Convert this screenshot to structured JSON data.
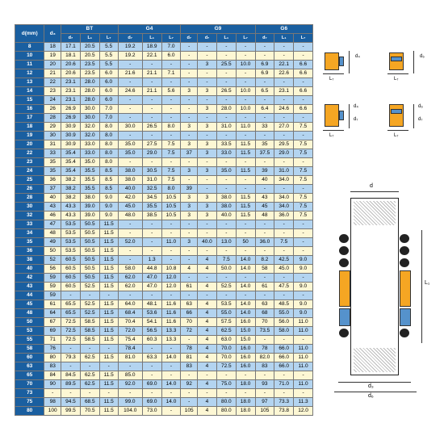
{
  "table": {
    "header": {
      "d": "d(mm)",
      "d3": "d₃",
      "groups": [
        "BT",
        "G4",
        "G9",
        "G6"
      ],
      "sub": [
        "d₇",
        "L₁",
        "L₇",
        "d₇",
        "L₁",
        "L₇",
        "d₇",
        "L₁",
        "L₇",
        "d₇",
        "L₁",
        "L₇"
      ]
    },
    "rows": [
      [
        "8",
        "18",
        "17.1",
        "20.5",
        "5.5",
        "19.2",
        "18.9",
        "7.0",
        "-",
        "-",
        "-",
        "-",
        "-",
        "-",
        "-",
        "-"
      ],
      [
        "10",
        "19",
        "18.1",
        "20.5",
        "5.5",
        "19.2",
        "22.1",
        "6.0",
        "-",
        "-",
        "-",
        "-",
        "-",
        "-",
        "-",
        "-"
      ],
      [
        "11",
        "20",
        "20.6",
        "23.5",
        "5.5",
        "-",
        "-",
        "-",
        "-",
        "3",
        "25.5",
        "10.0",
        "6.9",
        "22.1",
        "6.6",
        "-"
      ],
      [
        "12",
        "21",
        "20.6",
        "23.5",
        "6.0",
        "21.6",
        "21.1",
        "7.1",
        "-",
        "-",
        "-",
        "-",
        "6.9",
        "22.6",
        "6.6",
        "-"
      ],
      [
        "13",
        "22",
        "23.1",
        "28.0",
        "6.0",
        "-",
        "-",
        "-",
        "-",
        "-",
        "-",
        "-",
        "-",
        "-",
        "-",
        "-"
      ],
      [
        "14",
        "23",
        "23.1",
        "28.0",
        "6.0",
        "24.6",
        "21.1",
        "5.6",
        "3",
        "3",
        "26.5",
        "10.0",
        "6.5",
        "23.1",
        "6.6",
        "-"
      ],
      [
        "15",
        "24",
        "23.1",
        "28.0",
        "6.0",
        "-",
        "-",
        "-",
        "-",
        "-",
        "-",
        "-",
        "-",
        "-",
        "-",
        "-"
      ],
      [
        "16",
        "26",
        "26.9",
        "30.0",
        "7.0",
        "-",
        "-",
        "-",
        "-",
        "3",
        "28.0",
        "10.0",
        "6.4",
        "24.6",
        "6.6",
        "-"
      ],
      [
        "17",
        "28",
        "26.9",
        "30.0",
        "7.0",
        "-",
        "-",
        "-",
        "-",
        "-",
        "-",
        "-",
        "-",
        "-",
        "-",
        "-"
      ],
      [
        "18",
        "29",
        "30.9",
        "32.0",
        "8.0",
        "30.0",
        "26.5",
        "8.0",
        "3",
        "3",
        "31.0",
        "11.0",
        "33",
        "27.0",
        "7.5",
        "-"
      ],
      [
        "19",
        "30",
        "30.9",
        "32.0",
        "8.0",
        "-",
        "-",
        "-",
        "-",
        "-",
        "-",
        "-",
        "-",
        "-",
        "-",
        "-"
      ],
      [
        "20",
        "31",
        "30.9",
        "33.0",
        "8.0",
        "35.0",
        "27.5",
        "7.5",
        "3",
        "3",
        "33.5",
        "11.5",
        "35",
        "29.5",
        "7.5",
        "-"
      ],
      [
        "22",
        "33",
        "35.4",
        "33.0",
        "8.0",
        "35.0",
        "29.0",
        "7.5",
        "37",
        "3",
        "33.0",
        "11.5",
        "37.5",
        "29.0",
        "7.5",
        "-"
      ],
      [
        "23",
        "35",
        "35.4",
        "35.0",
        "8.0",
        "-",
        "-",
        "-",
        "-",
        "-",
        "-",
        "-",
        "-",
        "-",
        "-",
        "-"
      ],
      [
        "24",
        "35",
        "35.4",
        "35.5",
        "8.5",
        "38.0",
        "30.5",
        "7.5",
        "3",
        "3",
        "35.0",
        "11.5",
        "39",
        "31.0",
        "7.5",
        "-"
      ],
      [
        "25",
        "36",
        "38.2",
        "35.5",
        "8.5",
        "38.0",
        "31.0",
        "7.5",
        "-",
        "-",
        "-",
        "-",
        "40",
        "34.0",
        "7.5",
        "-"
      ],
      [
        "26",
        "37",
        "38.2",
        "35.5",
        "8.5",
        "40.0",
        "32.5",
        "8.0",
        "39",
        "-",
        "-",
        "-",
        "-",
        "-",
        "-",
        "-"
      ],
      [
        "28",
        "40",
        "38.2",
        "38.0",
        "9.0",
        "42.0",
        "34.5",
        "10.5",
        "3",
        "3",
        "38.0",
        "11.5",
        "43",
        "34.0",
        "7.5",
        "-"
      ],
      [
        "30",
        "43",
        "43.3",
        "39.0",
        "9.0",
        "45.0",
        "35.5",
        "10.5",
        "3",
        "3",
        "38.0",
        "11.5",
        "45",
        "34.0",
        "7.5",
        "-"
      ],
      [
        "32",
        "46",
        "43.3",
        "39.0",
        "9.0",
        "48.0",
        "38.5",
        "10.5",
        "3",
        "3",
        "40.0",
        "11.5",
        "48",
        "36.0",
        "7.5",
        "-"
      ],
      [
        "33",
        "47",
        "53.5",
        "50.5",
        "11.5",
        "-",
        "-",
        "-",
        "-",
        "-",
        "-",
        "-",
        "-",
        "-",
        "-",
        "-"
      ],
      [
        "34",
        "48",
        "53.5",
        "50.5",
        "11.5",
        "-",
        "-",
        "-",
        "-",
        "-",
        "-",
        "-",
        "-",
        "-",
        "-",
        "-"
      ],
      [
        "35",
        "49",
        "53.5",
        "50.5",
        "11.5",
        "52.0",
        "-",
        "11.0",
        "3",
        "40.0",
        "13.0",
        "50",
        "36.0",
        "7.5",
        "-",
        "-"
      ],
      [
        "36",
        "50",
        "53.5",
        "50.5",
        "11.5",
        "-",
        "-",
        "-",
        "-",
        "-",
        "-",
        "-",
        "-",
        "-",
        "-",
        "-"
      ],
      [
        "38",
        "52",
        "60.5",
        "50.5",
        "11.5",
        "-",
        "1.3",
        "-",
        "-",
        "4",
        "7.5",
        "14.0",
        "8.2",
        "42.5",
        "9.0",
        "-"
      ],
      [
        "40",
        "56",
        "60.5",
        "50.5",
        "11.5",
        "58.0",
        "44.8",
        "10.8",
        "4",
        "4",
        "50.0",
        "14.0",
        "58",
        "45.0",
        "9.0",
        "-"
      ],
      [
        "42",
        "59",
        "60.5",
        "50.5",
        "11.5",
        "62.0",
        "47.0",
        "12.0",
        "-",
        "-",
        "-",
        "-",
        "-",
        "-",
        "-",
        "-"
      ],
      [
        "43",
        "59",
        "60.5",
        "52.5",
        "11.5",
        "62.0",
        "47.0",
        "12.0",
        "61",
        "4",
        "52.5",
        "14.0",
        "61",
        "47.5",
        "9.0",
        "-"
      ],
      [
        "44",
        "59",
        "-",
        "-",
        "-",
        "-",
        "-",
        "-",
        "-",
        "-",
        "-",
        "-",
        "-",
        "-",
        "-",
        "-"
      ],
      [
        "45",
        "61",
        "65.5",
        "52.5",
        "11.5",
        "64.0",
        "48.1",
        "11.6",
        "63",
        "4",
        "53.5",
        "14.0",
        "63",
        "48.5",
        "9.0",
        "-"
      ],
      [
        "48",
        "64",
        "65.5",
        "52.5",
        "11.5",
        "68.4",
        "53.6",
        "11.6",
        "66",
        "4",
        "55.0",
        "14.0",
        "68",
        "55.0",
        "9.0",
        "-"
      ],
      [
        "50",
        "67",
        "72.5",
        "58.5",
        "11.5",
        "70.4",
        "54.1",
        "11.6",
        "70",
        "4",
        "57.5",
        "16.0",
        "70",
        "56.0",
        "11.0",
        "-"
      ],
      [
        "53",
        "69",
        "72.5",
        "58.5",
        "11.5",
        "72.0",
        "56.5",
        "13.3",
        "72",
        "4",
        "62.5",
        "15.0",
        "73.5",
        "58.0",
        "11.0",
        "-"
      ],
      [
        "55",
        "71",
        "72.5",
        "58.5",
        "11.5",
        "75.4",
        "60.3",
        "13.3",
        "-",
        "4",
        "63.0",
        "15.0",
        "-",
        "-",
        "-",
        "-"
      ],
      [
        "58",
        "76",
        "-",
        "-",
        "-",
        "78.4",
        "-",
        "-",
        "78",
        "4",
        "70.0",
        "16.0",
        "78",
        "66.0",
        "11.0",
        "-"
      ],
      [
        "60",
        "80",
        "79.3",
        "62.5",
        "11.5",
        "81.0",
        "63.3",
        "14.0",
        "81",
        "4",
        "70.0",
        "16.0",
        "82.0",
        "66.0",
        "11.0",
        "-"
      ],
      [
        "63",
        "83",
        "-",
        "-",
        "-",
        "-",
        "-",
        "-",
        "83",
        "4",
        "72.5",
        "16.0",
        "83",
        "66.0",
        "11.0",
        "-"
      ],
      [
        "65",
        "84",
        "84.5",
        "62.5",
        "11.5",
        "85.0",
        "-",
        "-",
        "-",
        "-",
        "-",
        "-",
        "-",
        "-",
        "-",
        "-"
      ],
      [
        "70",
        "90",
        "89.5",
        "62.5",
        "11.5",
        "92.0",
        "69.0",
        "14.0",
        "92",
        "4",
        "75.0",
        "18.0",
        "93",
        "71.0",
        "11.0",
        "-"
      ],
      [
        "73",
        "-",
        "-",
        "-",
        "-",
        "-",
        "-",
        "-",
        "-",
        "-",
        "-",
        "-",
        "-",
        "-",
        "-",
        "-"
      ],
      [
        "75",
        "98",
        "94.5",
        "68.5",
        "11.5",
        "99.0",
        "69.0",
        "14.0",
        "-",
        "4",
        "80.0",
        "18.0",
        "97",
        "73.3",
        "11.3",
        "-"
      ],
      [
        "80",
        "100",
        "99.5",
        "70.5",
        "11.5",
        "104.0",
        "73.0",
        "-",
        "105",
        "4",
        "80.0",
        "18.0",
        "105",
        "73.8",
        "12.0",
        "-"
      ]
    ],
    "colors": {
      "hdr": "#1a5fa0",
      "txt": "#ffffff",
      "rb": "#b3d4f0",
      "ry": "#fdf7d4",
      "border": "#777777"
    }
  },
  "mini_diagrams": {
    "labels": [
      "d₄",
      "L₇",
      "d₆",
      "L₇",
      "d₄",
      "d₇",
      "L₇",
      "d₆",
      "d₇",
      "L₇"
    ],
    "colors": {
      "orange": "#f5a623",
      "blue": "#5592cc",
      "line": "#333333"
    }
  },
  "big_diagram": {
    "labels": {
      "d": "d",
      "d3": "d₃",
      "d6": "d₆",
      "L1": "L₁"
    },
    "colors": {
      "orange": "#f5a623",
      "blue": "#5592cc",
      "black": "#222222",
      "hatch": "#bbbbbb"
    }
  }
}
